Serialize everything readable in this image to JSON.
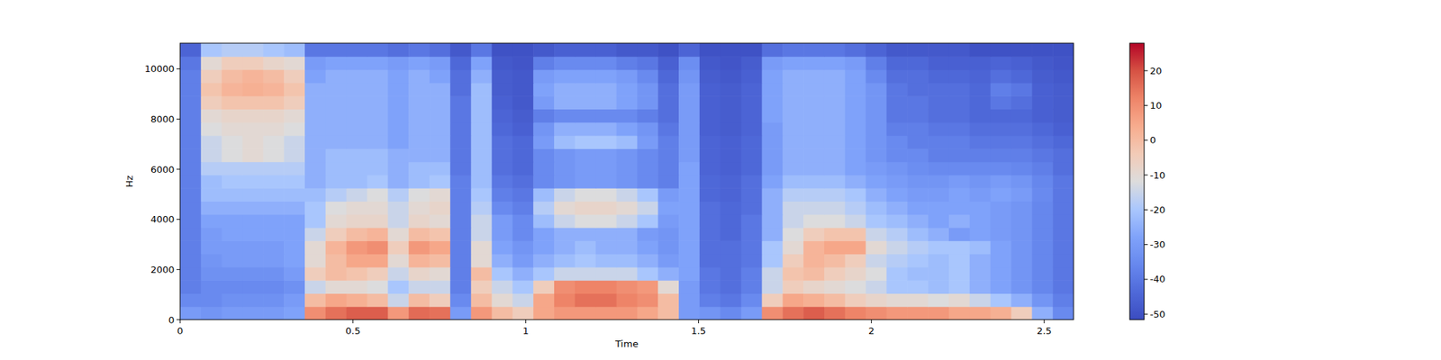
{
  "chart_data": {
    "type": "heatmap",
    "x_label": "Time",
    "y_label": "Hz",
    "xlim": [
      0,
      2.585
    ],
    "xticks": [
      0,
      0.5,
      1,
      1.5,
      2,
      2.5
    ],
    "ylim": [
      0,
      11025
    ],
    "yticks": [
      0,
      2000,
      4000,
      6000,
      8000,
      10000
    ],
    "color_range": [
      -51.6,
      27.9
    ],
    "color_ticks": [
      -50,
      -40,
      -30,
      -20,
      -10,
      0,
      10,
      20
    ],
    "values": [
      [
        -30,
        -32,
        -30,
        -30,
        -30,
        -28,
        10,
        15,
        18,
        18,
        8,
        16,
        15,
        -30,
        8,
        0,
        -5,
        5,
        8,
        8,
        8,
        8,
        5,
        0,
        -30,
        -32,
        -35,
        -30,
        10,
        15,
        18,
        15,
        12,
        10,
        8,
        8,
        8,
        5,
        5,
        3,
        -5,
        -25,
        -35
      ],
      [
        -35,
        -35,
        -33,
        -33,
        -33,
        -30,
        0,
        5,
        3,
        0,
        -15,
        0,
        -5,
        -35,
        0,
        -10,
        -15,
        5,
        12,
        15,
        15,
        12,
        10,
        0,
        -30,
        -38,
        -40,
        -35,
        -5,
        5,
        3,
        0,
        -5,
        -8,
        -10,
        -10,
        -12,
        -10,
        -15,
        -20,
        -25,
        -32,
        -38
      ],
      [
        -38,
        -35,
        -35,
        -35,
        -35,
        -33,
        -15,
        -10,
        -10,
        -12,
        -20,
        -15,
        -15,
        -38,
        -5,
        -15,
        -20,
        -5,
        10,
        12,
        12,
        10,
        8,
        -10,
        -30,
        -40,
        -42,
        -38,
        -15,
        -5,
        -8,
        -10,
        -12,
        -15,
        -20,
        -20,
        -22,
        -20,
        -25,
        -28,
        -32,
        -36,
        -40
      ],
      [
        -38,
        -33,
        -33,
        -33,
        -33,
        -30,
        -5,
        0,
        -2,
        -5,
        -15,
        -8,
        -10,
        -38,
        0,
        -20,
        -25,
        -20,
        -15,
        -15,
        -15,
        -15,
        -20,
        -25,
        -28,
        -40,
        -42,
        -38,
        -15,
        -2,
        0,
        -5,
        -8,
        -12,
        -20,
        -22,
        -22,
        -20,
        -25,
        -28,
        -32,
        -36,
        -40
      ],
      [
        -38,
        -32,
        -30,
        -30,
        -30,
        -28,
        -10,
        0,
        5,
        5,
        -10,
        2,
        0,
        -38,
        -10,
        -25,
        -30,
        -25,
        -22,
        -20,
        -22,
        -22,
        -25,
        -30,
        -28,
        -42,
        -42,
        -40,
        -20,
        -5,
        2,
        0,
        -5,
        -15,
        -18,
        -20,
        -22,
        -20,
        -25,
        -28,
        -32,
        -36,
        -40
      ],
      [
        -38,
        -30,
        -30,
        -30,
        -30,
        -28,
        -10,
        2,
        8,
        10,
        -5,
        8,
        5,
        -38,
        -10,
        -28,
        -32,
        -28,
        -25,
        -22,
        -25,
        -25,
        -28,
        -32,
        -28,
        -42,
        -42,
        -40,
        -20,
        -10,
        2,
        5,
        5,
        -10,
        -15,
        -18,
        -20,
        -20,
        -22,
        -28,
        -32,
        -36,
        -40
      ],
      [
        -38,
        -30,
        -28,
        -28,
        -28,
        -28,
        -15,
        -5,
        0,
        2,
        -10,
        0,
        -2,
        -38,
        -15,
        -30,
        -35,
        -28,
        -25,
        -25,
        -25,
        -25,
        -30,
        -32,
        -28,
        -42,
        -44,
        -40,
        -25,
        -12,
        -5,
        -2,
        -2,
        -15,
        -18,
        -22,
        -25,
        -30,
        -28,
        -30,
        -32,
        -36,
        -40
      ],
      [
        -38,
        -28,
        -28,
        -28,
        -28,
        -28,
        -20,
        -10,
        -8,
        -8,
        -15,
        -8,
        -10,
        -38,
        -15,
        -30,
        -35,
        -22,
        -15,
        -12,
        -12,
        -15,
        -20,
        -30,
        -28,
        -42,
        -44,
        -40,
        -25,
        -15,
        -12,
        -12,
        -15,
        -20,
        -22,
        -25,
        -28,
        -25,
        -28,
        -30,
        -32,
        -36,
        -40
      ],
      [
        -38,
        -25,
        -25,
        -25,
        -25,
        -25,
        -20,
        -12,
        -10,
        -10,
        -15,
        -10,
        -8,
        -38,
        -18,
        -35,
        -38,
        -18,
        -10,
        -8,
        -8,
        -10,
        -15,
        -28,
        -28,
        -42,
        -44,
        -42,
        -25,
        -15,
        -15,
        -15,
        -18,
        -22,
        -25,
        -28,
        -28,
        -28,
        -28,
        -30,
        -32,
        -36,
        -40
      ],
      [
        -38,
        -22,
        -22,
        -22,
        -22,
        -22,
        -22,
        -18,
        -15,
        -12,
        -18,
        -12,
        -10,
        -38,
        -20,
        -38,
        -40,
        -22,
        -15,
        -12,
        -12,
        -15,
        -20,
        -30,
        -28,
        -44,
        -45,
        -42,
        -25,
        -18,
        -18,
        -18,
        -20,
        -25,
        -28,
        -30,
        -30,
        -28,
        -30,
        -28,
        -30,
        -35,
        -40
      ],
      [
        -38,
        -22,
        -20,
        -20,
        -20,
        -20,
        -25,
        -22,
        -22,
        -20,
        -25,
        -22,
        -20,
        -38,
        -22,
        -40,
        -42,
        -35,
        -32,
        -30,
        -30,
        -32,
        -35,
        -38,
        -28,
        -44,
        -45,
        -42,
        -28,
        -22,
        -22,
        -22,
        -25,
        -28,
        -30,
        -32,
        -32,
        -30,
        -32,
        -30,
        -32,
        -36,
        -40
      ],
      [
        -38,
        -18,
        -18,
        -18,
        -18,
        -18,
        -25,
        -22,
        -22,
        -22,
        -25,
        -22,
        -22,
        -40,
        -22,
        -42,
        -44,
        -35,
        -32,
        -30,
        -30,
        -32,
        -35,
        -38,
        -28,
        -45,
        -46,
        -44,
        -30,
        -25,
        -25,
        -25,
        -28,
        -30,
        -32,
        -34,
        -35,
        -35,
        -35,
        -35,
        -36,
        -38,
        -42
      ],
      [
        -38,
        -15,
        -12,
        -10,
        -12,
        -15,
        -25,
        -22,
        -22,
        -22,
        -25,
        -25,
        -25,
        -40,
        -22,
        -42,
        -44,
        -35,
        -32,
        -30,
        -30,
        -32,
        -35,
        -38,
        -30,
        -45,
        -46,
        -44,
        -30,
        -25,
        -25,
        -25,
        -28,
        -32,
        -35,
        -35,
        -38,
        -38,
        -38,
        -38,
        -38,
        -40,
        -42
      ],
      [
        -38,
        -15,
        -12,
        -10,
        -12,
        -15,
        -25,
        -25,
        -25,
        -25,
        -28,
        -25,
        -25,
        -40,
        -22,
        -42,
        -44,
        -30,
        -22,
        -20,
        -20,
        -22,
        -30,
        -38,
        -30,
        -45,
        -46,
        -44,
        -30,
        -25,
        -25,
        -25,
        -28,
        -32,
        -35,
        -38,
        -38,
        -38,
        -40,
        -40,
        -40,
        -42,
        -44
      ],
      [
        -38,
        -12,
        -10,
        -10,
        -10,
        -12,
        -25,
        -25,
        -25,
        -25,
        -28,
        -25,
        -25,
        -40,
        -22,
        -44,
        -46,
        -32,
        -25,
        -25,
        -25,
        -28,
        -32,
        -40,
        -30,
        -46,
        -47,
        -45,
        -30,
        -25,
        -25,
        -25,
        -28,
        -32,
        -38,
        -38,
        -40,
        -40,
        -42,
        -42,
        -42,
        -44,
        -46
      ],
      [
        -38,
        -10,
        -8,
        -8,
        -8,
        -10,
        -25,
        -25,
        -25,
        -25,
        -28,
        -25,
        -25,
        -40,
        -22,
        -45,
        -47,
        -38,
        -35,
        -35,
        -35,
        -35,
        -38,
        -42,
        -30,
        -46,
        -47,
        -45,
        -28,
        -25,
        -25,
        -25,
        -28,
        -32,
        -40,
        -40,
        -42,
        -42,
        -44,
        -44,
        -44,
        -46,
        -47
      ],
      [
        -38,
        -5,
        -2,
        -2,
        -2,
        -5,
        -25,
        -25,
        -25,
        -25,
        -28,
        -25,
        -25,
        -40,
        -22,
        -46,
        -48,
        -30,
        -25,
        -25,
        -25,
        -28,
        -32,
        -42,
        -30,
        -46,
        -47,
        -45,
        -28,
        -25,
        -25,
        -25,
        -28,
        -32,
        -40,
        -40,
        -42,
        -42,
        -44,
        -40,
        -42,
        -46,
        -47
      ],
      [
        -38,
        -2,
        2,
        3,
        2,
        -2,
        -25,
        -25,
        -25,
        -25,
        -28,
        -25,
        -25,
        -42,
        -22,
        -47,
        -48,
        -28,
        -25,
        -25,
        -25,
        -28,
        -32,
        -42,
        -30,
        -46,
        -47,
        -45,
        -28,
        -25,
        -25,
        -25,
        -28,
        -32,
        -40,
        -42,
        -42,
        -42,
        -44,
        -38,
        -40,
        -46,
        -47
      ],
      [
        -38,
        -5,
        0,
        2,
        0,
        -5,
        -28,
        -25,
        -25,
        -25,
        -28,
        -25,
        -28,
        -42,
        -25,
        -47,
        -48,
        -30,
        -28,
        -28,
        -28,
        -30,
        -35,
        -44,
        -32,
        -47,
        -48,
        -46,
        -28,
        -25,
        -25,
        -25,
        -28,
        -35,
        -42,
        -42,
        -44,
        -44,
        -45,
        -42,
        -44,
        -47,
        -48
      ],
      [
        -40,
        -10,
        -5,
        -5,
        -8,
        -10,
        -30,
        -28,
        -28,
        -28,
        -30,
        -28,
        -30,
        -44,
        -28,
        -48,
        -49,
        -38,
        -35,
        -35,
        -35,
        -38,
        -40,
        -46,
        -34,
        -48,
        -49,
        -47,
        -30,
        -28,
        -28,
        -28,
        -30,
        -38,
        -44,
        -44,
        -46,
        -46,
        -46,
        -45,
        -46,
        -48,
        -49
      ],
      [
        -45,
        -20,
        -18,
        -18,
        -20,
        -22,
        -40,
        -40,
        -40,
        -40,
        -42,
        -40,
        -42,
        -48,
        -40,
        -50,
        -50,
        -48,
        -46,
        -46,
        -46,
        -48,
        -48,
        -50,
        -45,
        -50,
        -50,
        -50,
        -42,
        -40,
        -40,
        -40,
        -42,
        -45,
        -48,
        -48,
        -48,
        -48,
        -50,
        -50,
        -50,
        -50,
        -50
      ]
    ]
  }
}
